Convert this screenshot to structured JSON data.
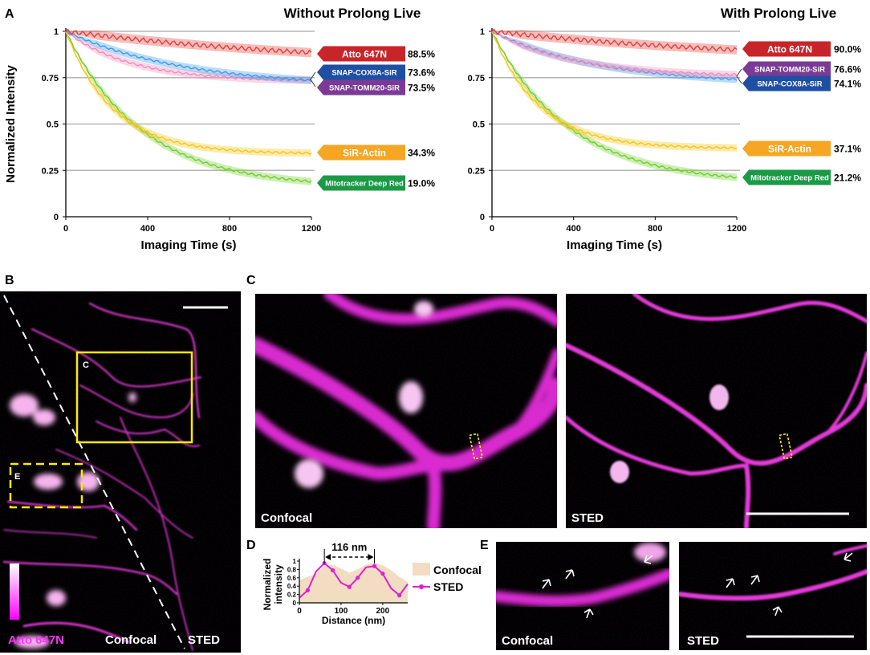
{
  "panels": {
    "a": "A",
    "b": "B",
    "c": "C",
    "d": "D",
    "e": "E"
  },
  "chart_data": [
    {
      "type": "line",
      "title": "Without Prolong Live",
      "xlabel": "Imaging Time (s)",
      "ylabel": "Normalized Intensity",
      "xlim": [
        0,
        1200
      ],
      "ylim": [
        0,
        1
      ],
      "xticks": [
        "0",
        "400",
        "800",
        "1200"
      ],
      "yticks": [
        "0",
        "0.25",
        "0.5",
        "0.75",
        "1"
      ],
      "series": [
        {
          "name": "Atto 647N",
          "final": 0.885,
          "label": "88.5%",
          "color": "#e0403a",
          "tau": 1400,
          "tag": "#c8252b"
        },
        {
          "name": "SNAP-COX8A-SiR",
          "final": 0.736,
          "label": "73.6%",
          "color": "#3d9be9",
          "tau": 580,
          "tag": "#1f4fa3"
        },
        {
          "name": "SNAP-TOMM20-SiR",
          "final": 0.735,
          "label": "73.5%",
          "color": "#f28bbd",
          "tau": 320,
          "tag": "#7b3a96"
        },
        {
          "name": "SiR-Actin",
          "final": 0.343,
          "label": "34.3%",
          "color": "#f5c518",
          "tau": 230,
          "tag": "#f5a623"
        },
        {
          "name": "Mitotracker Deep Red",
          "final": 0.19,
          "label": "19.0%",
          "color": "#6fce2b",
          "tau": 370,
          "tag": "#1a9a45"
        }
      ]
    },
    {
      "type": "line",
      "title": "With Prolong Live",
      "xlabel": "Imaging Time (s)",
      "ylabel": "",
      "xlim": [
        0,
        1200
      ],
      "ylim": [
        0,
        1
      ],
      "xticks": [
        "0",
        "400",
        "800",
        "1200"
      ],
      "yticks": [
        "0",
        "0.25",
        "0.5",
        "0.75",
        "1"
      ],
      "series": [
        {
          "name": "Atto 647N",
          "final": 0.9,
          "label": "90.0%",
          "color": "#e0403a",
          "tau": 1400,
          "tag": "#c8252b"
        },
        {
          "name": "SNAP-TOMM20-SiR",
          "final": 0.766,
          "label": "76.6%",
          "color": "#f28bbd",
          "tau": 400,
          "tag": "#7b3a96"
        },
        {
          "name": "SNAP-COX8A-SiR",
          "final": 0.741,
          "label": "74.1%",
          "color": "#3d9be9",
          "tau": 520,
          "tag": "#1f4fa3"
        },
        {
          "name": "SiR-Actin",
          "final": 0.371,
          "label": "37.1%",
          "color": "#f5c518",
          "tau": 230,
          "tag": "#f5a623"
        },
        {
          "name": "Mitotracker Deep Red",
          "final": 0.212,
          "label": "21.2%",
          "color": "#6fce2b",
          "tau": 380,
          "tag": "#1a9a45"
        }
      ]
    },
    {
      "type": "line",
      "title": "",
      "xlabel": "Distance (nm)",
      "ylabel": "Normalized intensity",
      "xlim": [
        0,
        260
      ],
      "ylim": [
        0,
        1
      ],
      "xticks": [
        "0",
        "100",
        "200"
      ],
      "yticks": [
        "0",
        "0.2",
        "0.4",
        "0.6",
        "0.8",
        "1"
      ],
      "annotation": "116 nm",
      "series": [
        {
          "name": "Confocal",
          "type": "area",
          "color": "#f2dcc2",
          "x": [
            0,
            20,
            40,
            60,
            80,
            100,
            120,
            140,
            160,
            180,
            200,
            220,
            240,
            260
          ],
          "values": [
            0.55,
            0.62,
            0.7,
            0.88,
            0.92,
            0.82,
            0.72,
            0.8,
            0.92,
            0.96,
            0.9,
            0.78,
            0.62,
            0.5
          ]
        },
        {
          "name": "STED",
          "type": "line",
          "color": "#e020d0",
          "x": [
            0,
            20,
            40,
            60,
            80,
            100,
            120,
            140,
            160,
            180,
            200,
            220,
            240,
            260
          ],
          "values": [
            0.12,
            0.3,
            0.75,
            0.95,
            0.78,
            0.48,
            0.38,
            0.6,
            0.85,
            0.88,
            0.7,
            0.35,
            0.18,
            0.45
          ]
        }
      ]
    }
  ],
  "panel_b": {
    "stain": "Atto 647N",
    "left": "Confocal",
    "right": "STED",
    "box_c": "C",
    "box_e": "E"
  },
  "panel_c": {
    "left": "Confocal",
    "right": "STED"
  },
  "panel_e": {
    "left": "Confocal",
    "right": "STED"
  }
}
